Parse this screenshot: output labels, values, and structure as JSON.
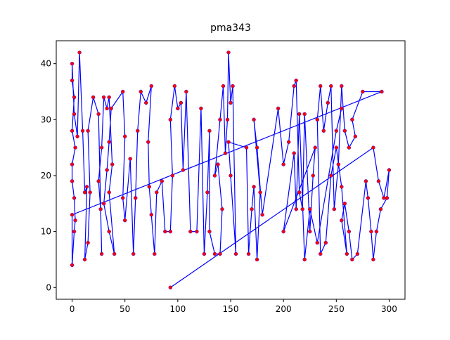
{
  "chart_data": {
    "type": "line",
    "title": "pma343",
    "x": [
      93,
      285,
      290,
      295,
      300,
      298,
      292,
      288,
      285,
      283,
      280,
      278,
      270,
      265,
      262,
      258,
      255,
      260,
      255,
      250,
      245,
      240,
      235,
      232,
      235,
      238,
      242,
      245,
      248,
      252,
      255,
      258,
      262,
      268,
      265,
      275,
      293,
      0,
      0,
      2,
      3,
      2,
      0,
      0,
      3,
      0,
      2,
      0,
      0,
      2,
      5,
      7,
      10,
      12,
      14,
      12,
      15,
      17,
      15,
      20,
      25,
      28,
      27,
      25,
      28,
      30,
      33,
      35,
      38,
      35,
      40,
      35,
      30,
      33,
      35,
      37,
      48,
      50,
      48,
      50,
      55,
      58,
      60,
      62,
      65,
      70,
      75,
      72,
      73,
      75,
      78,
      80,
      85,
      88,
      93,
      95,
      93,
      97,
      100,
      103,
      105,
      108,
      112,
      118,
      122,
      125,
      128,
      130,
      130,
      135,
      140,
      142,
      138,
      135,
      140,
      143,
      145,
      147,
      148,
      150,
      152,
      155,
      150,
      148,
      165,
      167,
      170,
      172,
      175,
      178,
      172,
      175,
      180,
      195,
      200,
      205,
      210,
      212,
      215,
      218,
      220,
      225,
      228,
      230,
      200,
      210,
      212,
      215,
      220,
      225,
      232,
      250,
      255
    ],
    "values": [
      0,
      25,
      19,
      16,
      21,
      16,
      14,
      10,
      5,
      10,
      16,
      19,
      6,
      5,
      10,
      15,
      12,
      6,
      18,
      25,
      20,
      8,
      6,
      30,
      36,
      28,
      33,
      36,
      14,
      22,
      36,
      28,
      25,
      27,
      30,
      35,
      35,
      13,
      4,
      10,
      12,
      16,
      19,
      22,
      25,
      28,
      34,
      37,
      40,
      31,
      27,
      42,
      28,
      17,
      18,
      5,
      8,
      17,
      28,
      34,
      31,
      6,
      14,
      19,
      25,
      34,
      32,
      34,
      22,
      17,
      6,
      10,
      15,
      21,
      26,
      32,
      35,
      27,
      16,
      12,
      23,
      6,
      16,
      28,
      35,
      33,
      36,
      26,
      18,
      13,
      6,
      17,
      19,
      10,
      10,
      20,
      30,
      36,
      32,
      33,
      21,
      35,
      10,
      10,
      32,
      6,
      17,
      28,
      10,
      6,
      6,
      14,
      22,
      20,
      30,
      36,
      24,
      30,
      42,
      33,
      36,
      6,
      20,
      26,
      25,
      6,
      14,
      18,
      5,
      17,
      30,
      25,
      13,
      32,
      22,
      26,
      36,
      37,
      17,
      14,
      31,
      10,
      20,
      25,
      10,
      24,
      14,
      31,
      5,
      14,
      8,
      28,
      32
    ],
    "color": "#0000ff",
    "marker_color": "#ff0000",
    "xlim": [
      -15,
      315
    ],
    "ylim": [
      -2.1,
      44.1
    ],
    "xticks": [
      0,
      50,
      100,
      150,
      200,
      250,
      300
    ],
    "yticks": [
      0,
      10,
      20,
      30,
      40
    ],
    "grid": false
  }
}
